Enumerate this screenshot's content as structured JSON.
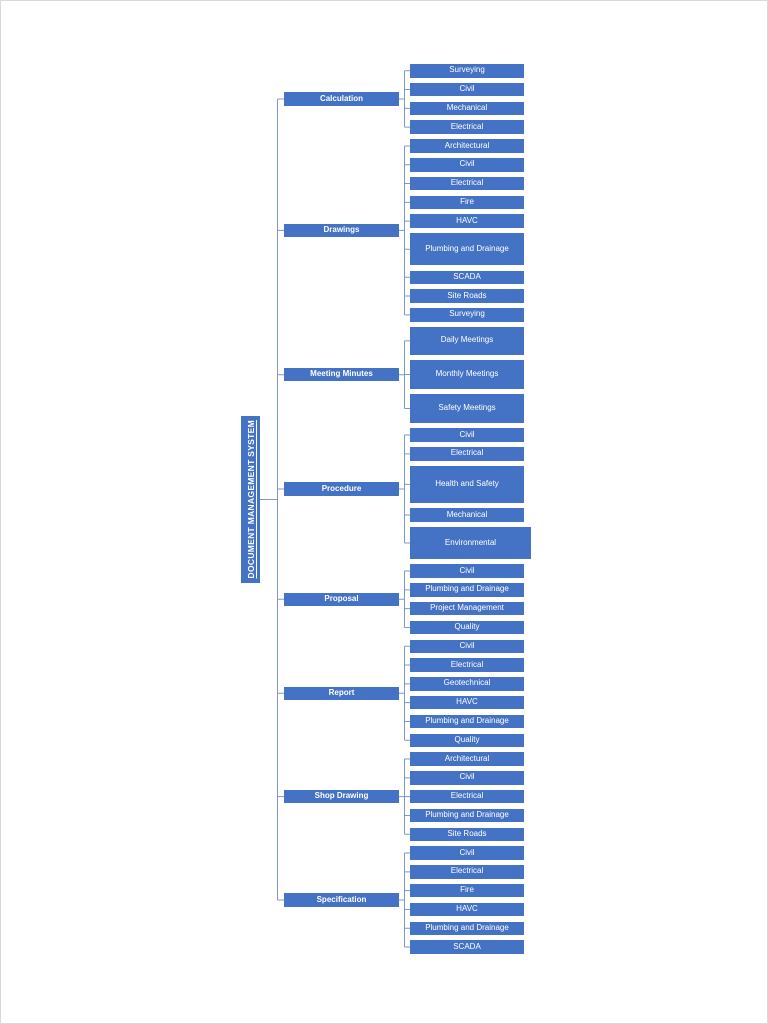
{
  "page": {
    "background": "#ffffff",
    "border_color": "#d8d8d8"
  },
  "diagram": {
    "root": {
      "label": "DOCUMENT MANAGEMENT SYSTEM"
    },
    "node_color": "#4472c4",
    "text_color": "#ffffff",
    "line_color": "#7f98c4",
    "categories": [
      {
        "label": "Calculation",
        "children": [
          "Surveying",
          "Civil",
          "Mechanical",
          "Electrical"
        ]
      },
      {
        "label": "Drawings",
        "children": [
          "Architectural",
          "Civil",
          "Electrical",
          "Fire",
          "HAVC",
          "Plumbing and Drainage",
          "SCADA",
          "Site Roads",
          "Surveying"
        ]
      },
      {
        "label": "Meeting Minutes",
        "children": [
          "Daily Meetings",
          "Monthly Meetings",
          "Safety Meetings"
        ]
      },
      {
        "label": "Procedure",
        "children": [
          "Civil",
          "Electrical",
          "Health and Safety",
          "Mechanical",
          "Environmental"
        ]
      },
      {
        "label": "Proposal",
        "children": [
          "Civil",
          "Plumbing and Drainage",
          "Project Management",
          "Quality"
        ]
      },
      {
        "label": "Report",
        "children": [
          "Civil",
          "Electrical",
          "Geotechnical",
          "HAVC",
          "Plumbing and Drainage",
          "Quality"
        ]
      },
      {
        "label": "Shop Drawing",
        "children": [
          "Architectural",
          "Civil",
          "Electrical",
          "Plumbing and Drainage",
          "Site Roads"
        ]
      },
      {
        "label": "Specification",
        "children": [
          "Civil",
          "Electrical",
          "Fire",
          "HAVC",
          "Plumbing and Drainage",
          "SCADA"
        ]
      }
    ]
  }
}
